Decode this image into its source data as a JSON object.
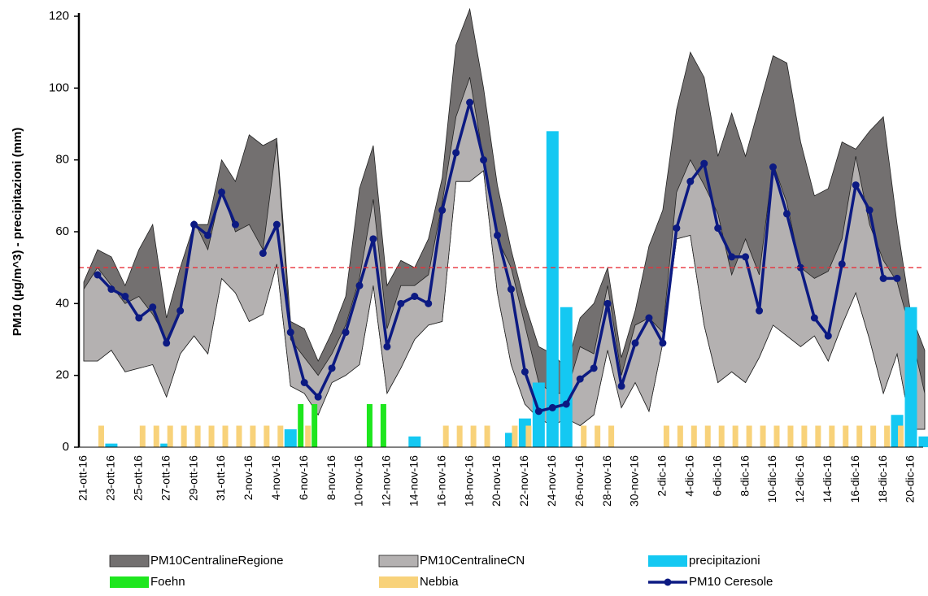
{
  "chart_data": {
    "type": "combo",
    "y_label": "PM10 (µg/m^3) - precipitazioni (mm)",
    "ylim": [
      0,
      120
    ],
    "yticks": [
      0,
      20,
      40,
      60,
      80,
      100,
      120
    ],
    "threshold": 50,
    "threshold_color": "#e8303a",
    "categories": [
      "21-ott-16",
      null,
      "23-ott-16",
      null,
      "25-ott-16",
      null,
      "27-ott-16",
      null,
      "29-ott-16",
      null,
      "31-ott-16",
      null,
      "2-nov-16",
      null,
      "4-nov-16",
      null,
      "6-nov-16",
      null,
      "8-nov-16",
      null,
      "10-nov-16",
      null,
      "12-nov-16",
      null,
      "14-nov-16",
      null,
      "16-nov-16",
      null,
      "18-nov-16",
      null,
      "20-nov-16",
      null,
      "22-nov-16",
      null,
      "24-nov-16",
      null,
      "26-nov-16",
      null,
      "28-nov-16",
      null,
      "30-nov-16",
      null,
      "2-dic-16",
      null,
      "4-dic-16",
      null,
      "6-dic-16",
      null,
      "8-dic-16",
      null,
      "10-dic-16",
      null,
      "12-dic-16",
      null,
      "14-dic-16",
      null,
      "16-dic-16",
      null,
      "18-dic-16",
      null,
      "20-dic-16",
      null
    ],
    "series": [
      {
        "name": "PM10CentralineRegione",
        "type": "band",
        "color": "#737070",
        "values": [
          46,
          55,
          53,
          45,
          55,
          62,
          36,
          50,
          62,
          62,
          80,
          74,
          87,
          84,
          86,
          35,
          33,
          24,
          32,
          42,
          72,
          84,
          45,
          52,
          50,
          58,
          75,
          112,
          122,
          100,
          73,
          55,
          40,
          28,
          26,
          22,
          36,
          40,
          50,
          25,
          38,
          56,
          66,
          94,
          110,
          103,
          81,
          93,
          81,
          95,
          109,
          107,
          85,
          70,
          72,
          85,
          83,
          88,
          92,
          62,
          37,
          27
        ],
        "low": [
          24,
          24,
          27,
          21,
          22,
          23,
          14,
          26,
          31,
          26,
          47,
          43,
          35,
          37,
          51,
          17,
          15,
          9,
          18,
          20,
          23,
          45,
          15,
          22,
          30,
          34,
          35,
          74,
          74,
          77,
          43,
          23,
          12,
          8,
          6,
          8,
          6,
          9,
          27,
          11,
          18,
          10,
          29,
          58,
          59,
          34,
          18,
          21,
          18,
          25,
          34,
          31,
          28,
          31,
          24,
          34,
          43,
          30,
          15,
          26,
          5,
          5
        ]
      },
      {
        "name": "PM10CentralineCN",
        "type": "band",
        "color": "#b4b1b1",
        "values": [
          44,
          50,
          45,
          40,
          42,
          37,
          30,
          38,
          63,
          55,
          72,
          60,
          62,
          55,
          85,
          30,
          25,
          20,
          26,
          34,
          47,
          69,
          33,
          45,
          45,
          48,
          68,
          92,
          103,
          80,
          58,
          50,
          34,
          18,
          15,
          15,
          28,
          26,
          45,
          20,
          34,
          36,
          32,
          71,
          80,
          73,
          65,
          48,
          58,
          48,
          79,
          68,
          50,
          47,
          49,
          58,
          81,
          62,
          52,
          46,
          32,
          15
        ],
        "low": [
          24,
          24,
          27,
          21,
          22,
          23,
          14,
          26,
          31,
          26,
          47,
          43,
          35,
          37,
          51,
          17,
          15,
          9,
          18,
          20,
          23,
          45,
          15,
          22,
          30,
          34,
          35,
          74,
          74,
          77,
          43,
          23,
          12,
          8,
          6,
          8,
          6,
          9,
          27,
          11,
          18,
          10,
          29,
          58,
          59,
          34,
          18,
          21,
          18,
          25,
          34,
          31,
          28,
          31,
          24,
          34,
          43,
          30,
          15,
          26,
          5,
          5
        ]
      },
      {
        "name": "precipitazioni",
        "type": "bar",
        "color": "#14c8f2",
        "values": [
          0,
          0,
          1,
          0,
          0,
          0,
          1,
          0,
          0,
          0,
          0,
          0,
          0,
          0,
          0,
          5,
          0,
          0,
          0,
          0,
          0,
          0,
          0,
          0,
          3,
          0,
          0,
          0,
          0,
          0,
          0,
          4,
          8,
          18,
          88,
          39,
          0,
          0,
          0,
          0,
          0,
          0,
          0,
          0,
          0,
          0,
          0,
          0,
          0,
          0,
          0,
          0,
          0,
          0,
          0,
          0,
          0,
          0,
          0,
          9,
          39,
          3
        ]
      },
      {
        "name": "Foehn",
        "type": "bar",
        "color": "#1ee61e",
        "values": [
          0,
          0,
          0,
          0,
          0,
          0,
          0,
          0,
          0,
          0,
          0,
          0,
          0,
          0,
          0,
          0,
          12,
          12,
          0,
          0,
          0,
          12,
          12,
          0,
          0,
          0,
          0,
          0,
          0,
          0,
          0,
          0,
          0,
          0,
          0,
          0,
          0,
          0,
          0,
          0,
          0,
          0,
          0,
          0,
          0,
          0,
          0,
          0,
          0,
          0,
          0,
          0,
          0,
          0,
          0,
          0,
          0,
          0,
          0,
          0,
          0,
          0
        ]
      },
      {
        "name": "Nebbia",
        "type": "bar",
        "color": "#f8d27a",
        "values": [
          0,
          6,
          0,
          0,
          6,
          6,
          6,
          6,
          6,
          6,
          6,
          6,
          6,
          6,
          6,
          0,
          6,
          0,
          0,
          0,
          0,
          0,
          0,
          0,
          0,
          0,
          6,
          6,
          6,
          6,
          0,
          6,
          6,
          0,
          0,
          0,
          6,
          6,
          6,
          0,
          0,
          0,
          6,
          6,
          6,
          6,
          6,
          6,
          6,
          6,
          6,
          6,
          6,
          6,
          6,
          6,
          6,
          6,
          6,
          6,
          0,
          0
        ]
      },
      {
        "name": "PM10 Ceresole",
        "type": "line",
        "color": "#0c1a82",
        "values": [
          null,
          48,
          44,
          42,
          36,
          39,
          29,
          38,
          62,
          59,
          71,
          62,
          null,
          54,
          62,
          32,
          18,
          14,
          22,
          32,
          45,
          58,
          28,
          40,
          42,
          40,
          66,
          82,
          96,
          80,
          59,
          44,
          21,
          10,
          11,
          12,
          19,
          22,
          40,
          17,
          29,
          36,
          29,
          61,
          74,
          79,
          61,
          53,
          53,
          38,
          78,
          65,
          50,
          36,
          31,
          51,
          73,
          66,
          47,
          47,
          null,
          null
        ]
      }
    ]
  }
}
